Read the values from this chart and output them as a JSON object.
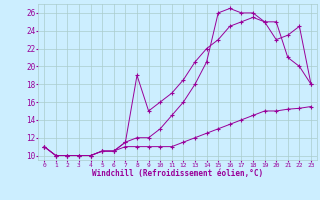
{
  "xlabel": "Windchill (Refroidissement éolien,°C)",
  "bg_color": "#cceeff",
  "grid_color": "#aacccc",
  "line_color": "#990099",
  "line1_x": [
    0,
    1,
    2,
    3,
    4,
    5,
    6,
    7,
    8,
    9,
    10,
    11,
    12,
    13,
    14,
    15,
    16,
    17,
    18,
    19,
    20,
    21,
    22,
    23
  ],
  "line1_y": [
    11,
    10,
    10,
    10,
    10,
    10.5,
    10.5,
    11,
    11,
    11,
    11,
    11,
    11.5,
    12,
    12.5,
    13,
    13.5,
    14,
    14.5,
    15,
    15,
    15.2,
    15.3,
    15.5
  ],
  "line2_x": [
    0,
    1,
    2,
    3,
    4,
    5,
    6,
    7,
    8,
    9,
    10,
    11,
    12,
    13,
    14,
    15,
    16,
    17,
    18,
    19,
    20,
    21,
    22,
    23
  ],
  "line2_y": [
    11,
    10,
    10,
    10,
    10,
    10.5,
    10.5,
    11.5,
    19,
    15,
    16,
    17,
    18.5,
    20.5,
    22,
    23,
    24.5,
    25,
    25.5,
    25,
    23,
    23.5,
    24.5,
    18
  ],
  "line3_x": [
    0,
    1,
    2,
    3,
    4,
    5,
    6,
    7,
    8,
    9,
    10,
    11,
    12,
    13,
    14,
    15,
    16,
    17,
    18,
    19,
    20,
    21,
    22,
    23
  ],
  "line3_y": [
    11,
    10,
    10,
    10,
    10,
    10.5,
    10.5,
    11.5,
    12,
    12,
    13,
    14.5,
    16,
    18,
    20.5,
    26,
    26.5,
    26,
    26,
    25,
    25,
    21,
    20,
    18
  ],
  "xlim": [
    -0.5,
    23.5
  ],
  "ylim": [
    9.5,
    27
  ],
  "xticks": [
    0,
    1,
    2,
    3,
    4,
    5,
    6,
    7,
    8,
    9,
    10,
    11,
    12,
    13,
    14,
    15,
    16,
    17,
    18,
    19,
    20,
    21,
    22,
    23
  ],
  "yticks": [
    10,
    12,
    14,
    16,
    18,
    20,
    22,
    24,
    26
  ]
}
